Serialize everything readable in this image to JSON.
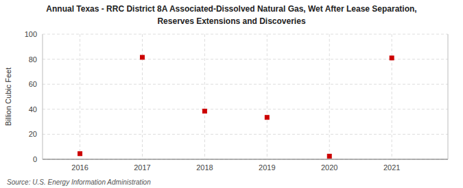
{
  "chart_data": {
    "type": "scatter",
    "title": "Annual Texas - RRC District 8A Associated-Dissolved Natural Gas, Wet After Lease Separation,",
    "subtitle": "Reserves Extensions and Discoveries",
    "ylabel": "Billion Cubic Feet",
    "source": "Source: U.S. Energy Information Administration",
    "x": [
      2016,
      2017,
      2018,
      2019,
      2020,
      2021
    ],
    "values": [
      4.5,
      81.5,
      38.5,
      33.5,
      2.5,
      81.0
    ],
    "color": "#cc0000",
    "marker": "square",
    "xlim": [
      2015.4,
      2021.9
    ],
    "xticks": [
      2016,
      2017,
      2018,
      2019,
      2020,
      2021
    ],
    "ylim": [
      0,
      100
    ],
    "yticks": [
      0,
      20,
      40,
      60,
      80,
      100
    ],
    "grid": true
  }
}
